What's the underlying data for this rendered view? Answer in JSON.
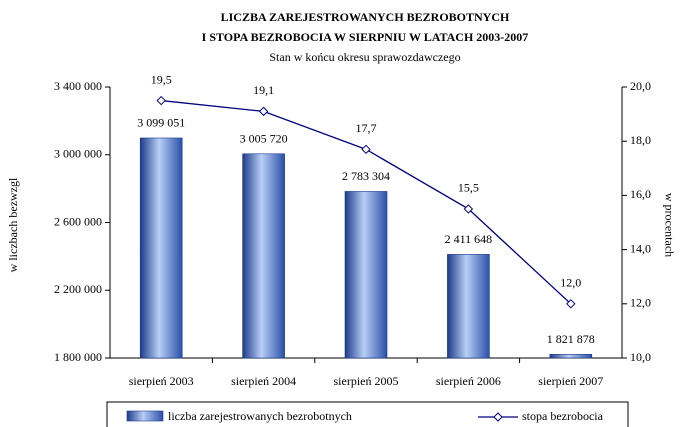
{
  "chart_data": {
    "type": "bar_line",
    "title": "LICZBA ZAREJESTROWANYCH BEZROBOTNYCH",
    "title_line2": "I STOPA BEZROBOCIA W SIERPNIU W LATACH 2003-2007",
    "subtitle": "Stan w końcu okresu sprawozdawczego",
    "y_label": "w liczbach bezwzgl",
    "y2_label": "w procentach",
    "categories": [
      "sierpień 2003",
      "sierpień 2004",
      "sierpień 2005",
      "sierpień 2006",
      "sierpień 2007"
    ],
    "series": [
      {
        "name": "liczba zarejestrowanych bezrobotnych",
        "type": "bar",
        "color": "#6c8fd8",
        "values": [
          3099051,
          3005720,
          2783304,
          2411648,
          1821878
        ],
        "value_labels": [
          "3 099 051",
          "3 005 720",
          "2 783 304",
          "2 411 648",
          "1 821 878"
        ]
      },
      {
        "name": "stopa bezrobocia",
        "type": "line",
        "axis": "y2",
        "color": "#000080",
        "values": [
          19.5,
          19.1,
          17.7,
          15.5,
          12.0
        ],
        "value_labels": [
          "19,5",
          "19,1",
          "17,7",
          "15,5",
          "12,0"
        ]
      }
    ],
    "ylim": [
      1800000,
      3400000
    ],
    "yticks": [
      {
        "value": 1800000,
        "label": "1 800 000"
      },
      {
        "value": 2200000,
        "label": "2 200 000"
      },
      {
        "value": 2600000,
        "label": "2 600 000"
      },
      {
        "value": 3000000,
        "label": "3 000 000"
      },
      {
        "value": 3400000,
        "label": "3 400 000"
      }
    ],
    "y2lim": [
      10,
      20
    ],
    "y2ticks": [
      {
        "value": 10,
        "label": "10,0"
      },
      {
        "value": 12,
        "label": "12,0"
      },
      {
        "value": 14,
        "label": "14,0"
      },
      {
        "value": 16,
        "label": "16,0"
      },
      {
        "value": 18,
        "label": "18,0"
      },
      {
        "value": 20,
        "label": "20,0"
      }
    ],
    "legend": "bottom"
  }
}
